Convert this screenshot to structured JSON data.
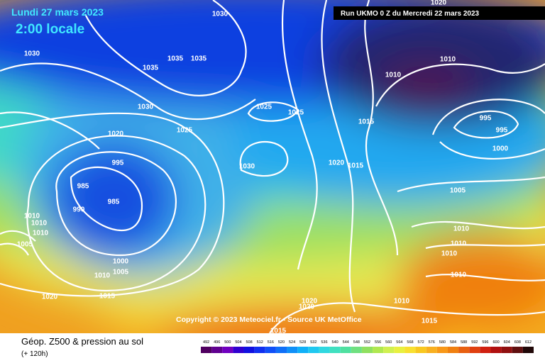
{
  "header": {
    "date": "Lundi 27 mars 2023",
    "time": "2:00 locale",
    "run": "Run UKMO 0 Z du Mercredi 22 mars 2023"
  },
  "copyright": "Copyright © 2023 Meteociel.fr - Source UK MetOffice",
  "footer": {
    "title": "Géop. Z500 & pression au sol",
    "subtitle": "(+ 120h)"
  },
  "colorbar": {
    "ticks": [
      492,
      496,
      500,
      504,
      508,
      512,
      516,
      520,
      524,
      528,
      532,
      536,
      540,
      544,
      548,
      552,
      556,
      560,
      564,
      568,
      572,
      576,
      580,
      584,
      588,
      592,
      596,
      600,
      604,
      608,
      612
    ]
  },
  "isobar_labels": [
    "1030",
    "1030",
    "1035",
    "1035",
    "1035",
    "1030",
    "1025",
    "1025",
    "1015",
    "1020",
    "1025",
    "995",
    "1030",
    "1020",
    "1015",
    "985",
    "985",
    "990",
    "1010",
    "1010",
    "1010",
    "1005",
    "1000",
    "1005",
    "1010",
    "1015",
    "1020",
    "1020",
    "1010",
    "1010",
    "995",
    "995",
    "1000",
    "1005",
    "1010",
    "1010",
    "1010",
    "1010",
    "1020",
    "1020",
    "1010",
    "1015",
    "1015"
  ]
}
